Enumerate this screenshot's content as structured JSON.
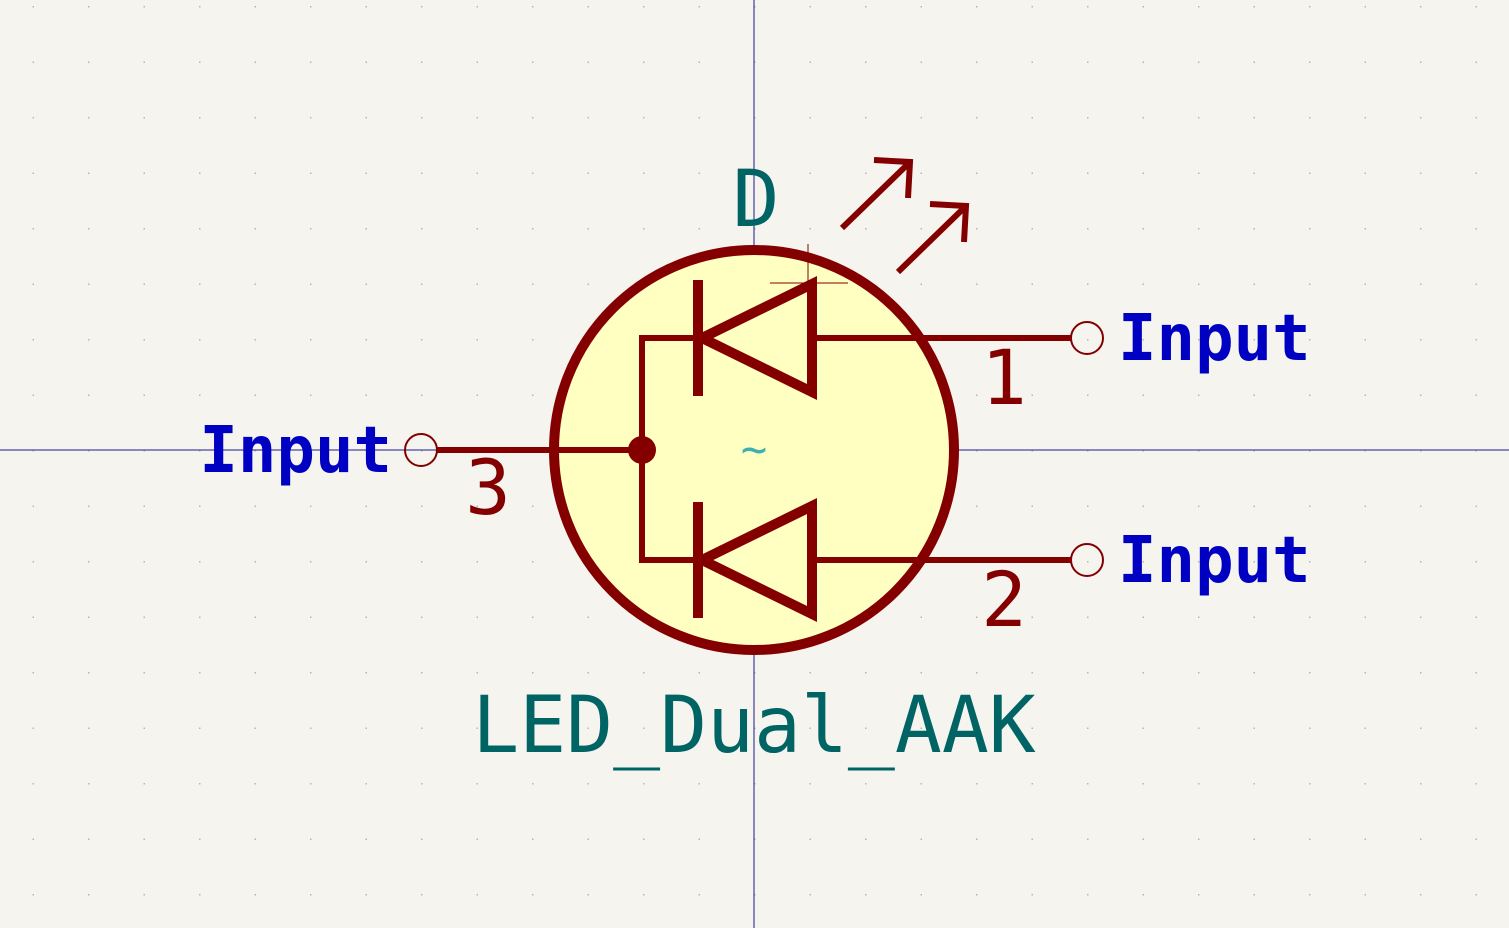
{
  "symbol": {
    "reference": "D",
    "value": "LED_Dual_AAK",
    "footprint_marker": "~"
  },
  "pins": [
    {
      "number": "1",
      "type": "Input"
    },
    {
      "number": "2",
      "type": "Input"
    },
    {
      "number": "3",
      "type": "Input"
    }
  ],
  "colors": {
    "background": "#f5f4ef",
    "body_fill": "#ffffc2",
    "outline": "#840000",
    "pin_type_text": "#0000c2",
    "field_text": "#006464",
    "crosshair": "#1c1c8c"
  },
  "icons": {
    "light_emission": "arrow-pair-icon",
    "pin_end": "open-circle-icon",
    "junction": "dot-icon"
  }
}
